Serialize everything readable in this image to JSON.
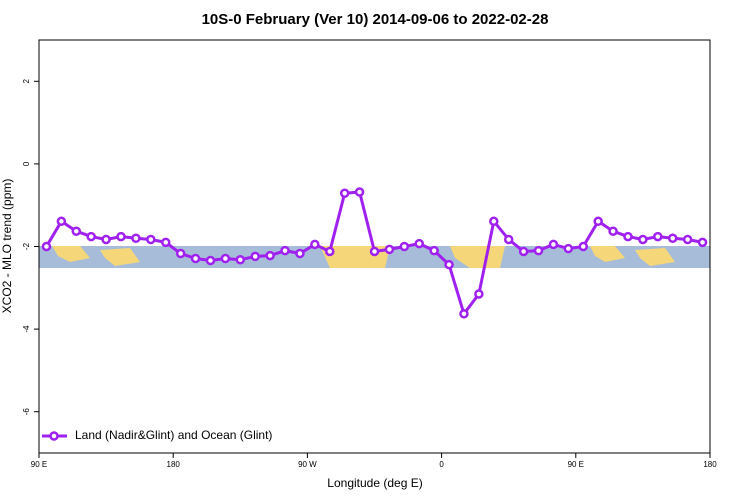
{
  "chart_data": {
    "type": "line",
    "title": "10S-0 February (Ver 10)   2014-09-06 to 2022-02-28",
    "x_label": "Longitude (deg E)",
    "y_label": "XCO2 - MLO trend (ppm)",
    "x": [
      95,
      105,
      115,
      125,
      135,
      145,
      155,
      165,
      175,
      185,
      195,
      205,
      215,
      225,
      235,
      245,
      255,
      265,
      275,
      285,
      295,
      305,
      315,
      325,
      335,
      345,
      355,
      365,
      375,
      385,
      395,
      405,
      415,
      425,
      435,
      445,
      455,
      465,
      475,
      485,
      495,
      505,
      515,
      525,
      535
    ],
    "series": [
      {
        "name": "Land (Nadir&Glint) and Ocean (Glint)",
        "color": "#a020f0",
        "values": [
          -2.0,
          -1.39,
          -1.63,
          -1.76,
          -1.83,
          -1.76,
          -1.8,
          -1.83,
          -1.9,
          -2.17,
          -2.29,
          -2.34,
          -2.29,
          -2.32,
          -2.24,
          -2.22,
          -2.1,
          -2.17,
          -1.95,
          -2.12,
          -0.71,
          -0.68,
          -2.12,
          -2.07,
          -2.0,
          -1.93,
          -2.1,
          -2.44,
          -3.63,
          -3.15,
          -1.39,
          -1.83,
          -2.12,
          -2.1,
          -1.95,
          -2.05,
          -2.0,
          -1.39,
          -1.63,
          -1.76,
          -1.83,
          -1.76,
          -1.8,
          -1.83,
          -1.9
        ]
      }
    ],
    "xlim": [
      90,
      540
    ],
    "xticks": [
      {
        "value": 90,
        "label": "90 E"
      },
      180,
      {
        "value": 270,
        "label": "90 W"
      },
      {
        "value": 360,
        "label": "0"
      },
      {
        "value": 450,
        "label": "90 E"
      },
      {
        "value": 540,
        "label": "180"
      }
    ],
    "ylim": [
      -7,
      3
    ],
    "yticks": [
      2,
      0,
      -2,
      -4,
      -6
    ],
    "legend": "bottom-left"
  }
}
